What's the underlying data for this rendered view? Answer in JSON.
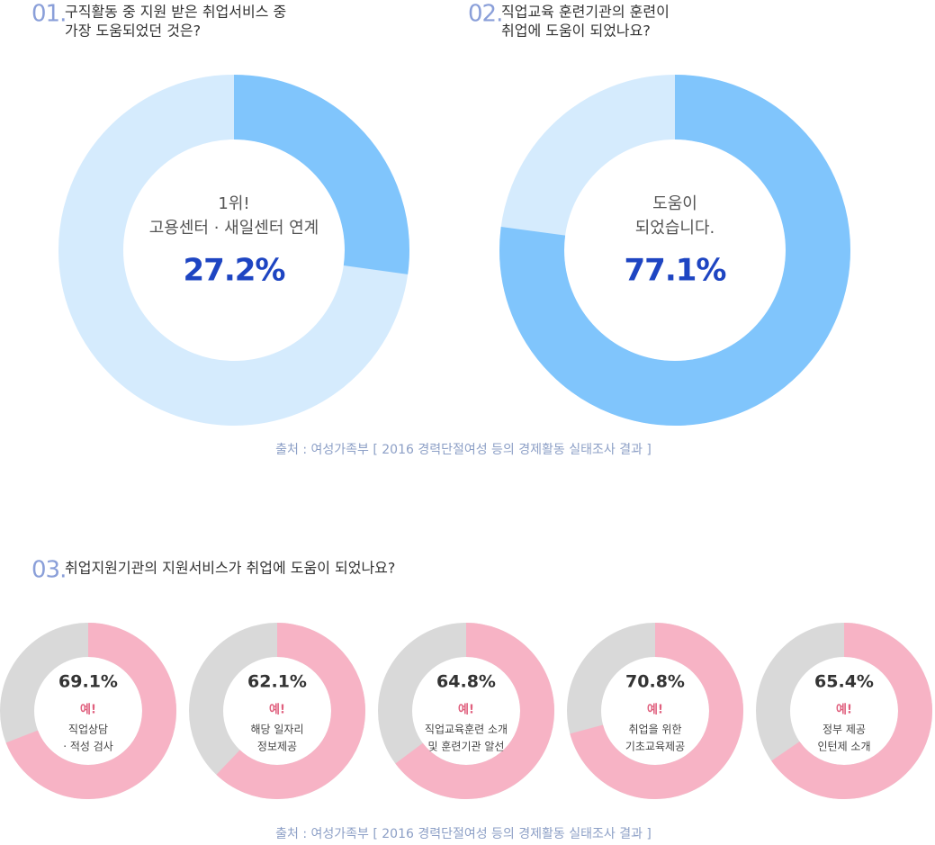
{
  "chart_data": [
    {
      "type": "donut",
      "number": "01.",
      "title": [
        "구직활동 중 지원 받은 취업서비스 중",
        "가장 도움되었던 것은?"
      ],
      "center_lines": [
        "1위!",
        "고용센터 · 새일센터 연계"
      ],
      "values": [
        27.2
      ],
      "value_labels": [
        "27.2%"
      ],
      "color": "#80c5fc",
      "track_color": "#d5ebfd",
      "source": "출처 : 여성가족부 [ 2016 경력단절여성 등의 경제활동 실태조사 결과 ]"
    },
    {
      "type": "donut",
      "number": "02.",
      "title": [
        "직업교육 훈련기관의 훈련이",
        "취업에 도움이 되었나요?"
      ],
      "center_lines": [
        "도움이",
        "되었습니다."
      ],
      "values": [
        77.1
      ],
      "value_labels": [
        "77.1%"
      ],
      "color": "#80c5fc",
      "track_color": "#d5ebfd"
    },
    {
      "type": "donut-row",
      "number": "03.",
      "title": [
        "취업지원기관의 지원서비스가 취업에 도움이 되었나요?"
      ],
      "badge": "예!",
      "categories": [
        [
          "직업상담",
          "· 적성 검사"
        ],
        [
          "해당 일자리",
          "정보제공"
        ],
        [
          "직업교육훈련 소개",
          "및 훈련기관 알선"
        ],
        [
          "취업을 위한",
          "기초교육제공"
        ],
        [
          "정부 제공",
          "인턴제 소개"
        ]
      ],
      "values": [
        69.1,
        62.1,
        64.8,
        70.8,
        65.4
      ],
      "value_labels": [
        "69.1%",
        "62.1%",
        "64.8%",
        "70.8%",
        "65.4%"
      ],
      "color": "#f7b3c5",
      "track_color": "#d9d9d9",
      "source": "출처 : 여성가족부 [ 2016 경력단절여성 등의 경제활동 실태조사 결과 ]"
    }
  ]
}
